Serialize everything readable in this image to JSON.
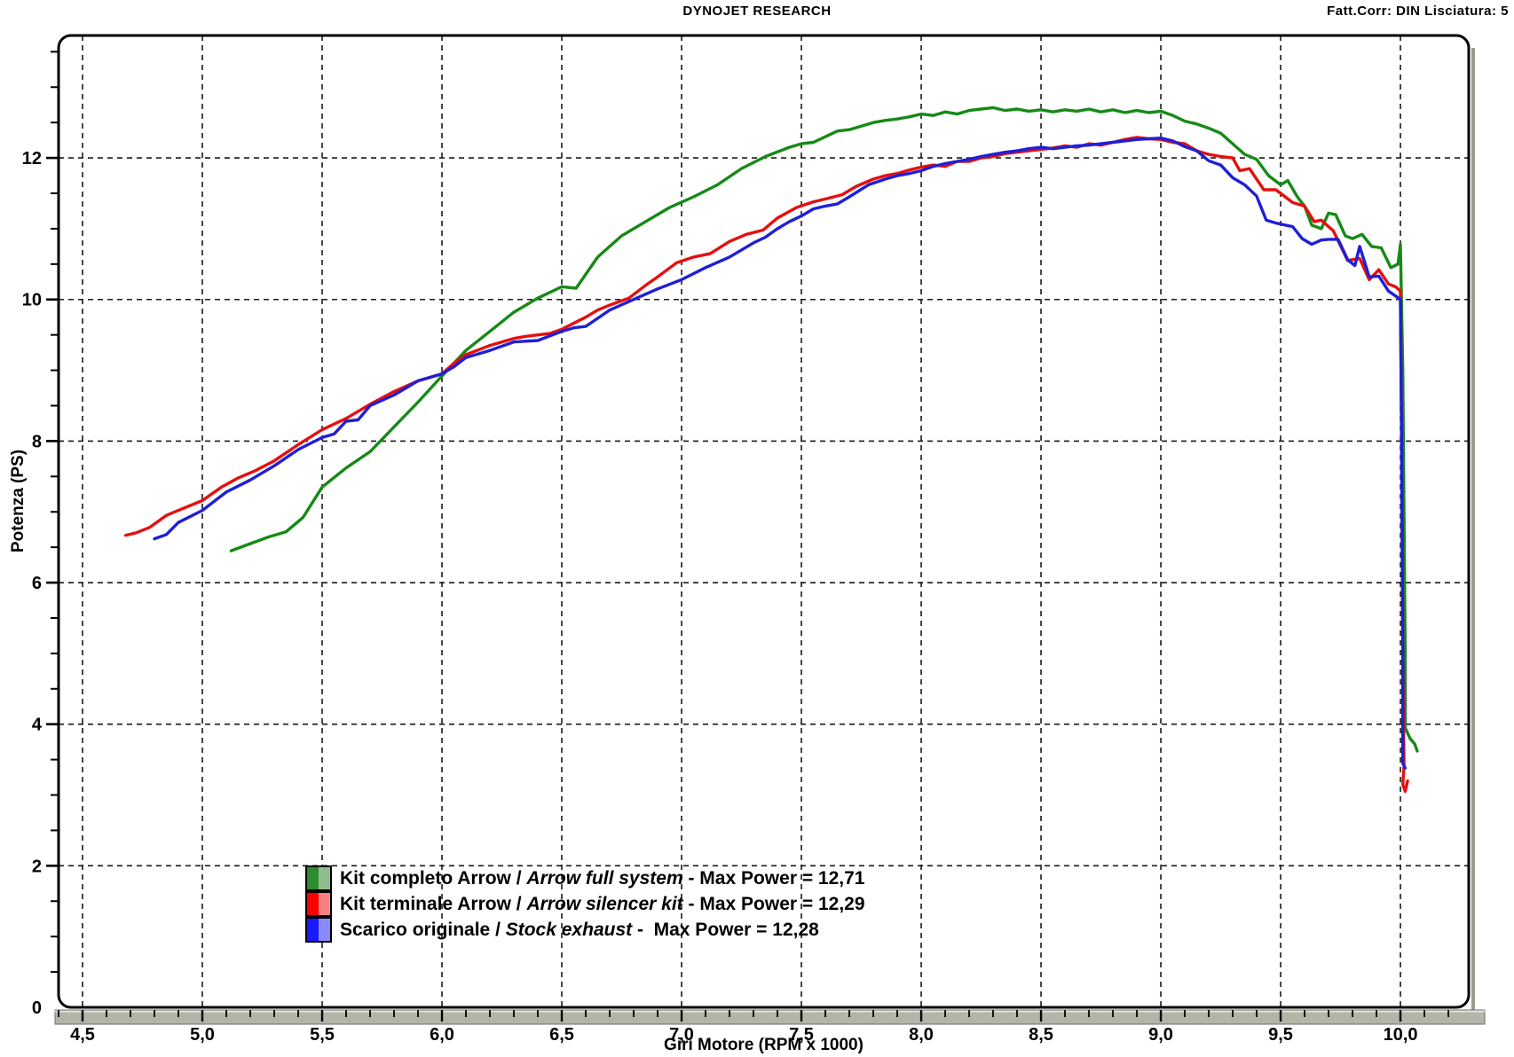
{
  "header": {
    "title": "DYNOJET RESEARCH",
    "correction": "Fatt.Corr: DIN  Lisciatura: 5"
  },
  "chart_data": {
    "type": "line",
    "title": "DYNOJET RESEARCH",
    "xlabel": "Giri Motore (RPM x 1000)",
    "ylabel": "Potenza (PS)",
    "xlim": [
      4.4,
      10.285
    ],
    "ylim": [
      0,
      13.73
    ],
    "grid": "dashed",
    "legend_position": "inside-bottom-left",
    "x_major_ticks": [
      4.5,
      5.0,
      5.5,
      6.0,
      6.5,
      7.0,
      7.5,
      8.0,
      8.5,
      9.0,
      9.5,
      10.0
    ],
    "x_tick_labels": [
      "4,5",
      "5,0",
      "5,5",
      "6,0",
      "6,5",
      "7,0",
      "7,5",
      "8,0",
      "8,5",
      "9,0",
      "9,5",
      "10,0"
    ],
    "x_minor_step": 0.1,
    "y_major_ticks": [
      0,
      2,
      4,
      6,
      8,
      10,
      12
    ],
    "y_tick_labels": [
      "0",
      "2",
      "4",
      "6",
      "8",
      "10",
      "12"
    ],
    "y_minor_step": 0.5,
    "axis_bar_color": "#b4b4a8",
    "grid_color": "#1a1a1a",
    "series": [
      {
        "name_plain": "Kit completo Arrow / ",
        "name_italic": "Arrow full system",
        "max_label": " - Max Power = 12,71",
        "max_power": "12,71",
        "color": "#168a16",
        "swatch": [
          "#2e8b2e",
          "#8fbc8f"
        ],
        "points": [
          [
            5.12,
            6.45
          ],
          [
            5.2,
            6.55
          ],
          [
            5.28,
            6.65
          ],
          [
            5.35,
            6.72
          ],
          [
            5.42,
            6.92
          ],
          [
            5.5,
            7.35
          ],
          [
            5.6,
            7.62
          ],
          [
            5.7,
            7.85
          ],
          [
            5.8,
            8.2
          ],
          [
            5.9,
            8.55
          ],
          [
            6.0,
            8.92
          ],
          [
            6.1,
            9.28
          ],
          [
            6.2,
            9.55
          ],
          [
            6.3,
            9.82
          ],
          [
            6.4,
            10.02
          ],
          [
            6.5,
            10.18
          ],
          [
            6.56,
            10.16
          ],
          [
            6.65,
            10.6
          ],
          [
            6.75,
            10.9
          ],
          [
            6.85,
            11.1
          ],
          [
            6.95,
            11.3
          ],
          [
            7.05,
            11.45
          ],
          [
            7.15,
            11.62
          ],
          [
            7.25,
            11.85
          ],
          [
            7.35,
            12.02
          ],
          [
            7.45,
            12.15
          ],
          [
            7.5,
            12.2
          ],
          [
            7.55,
            12.22
          ],
          [
            7.6,
            12.3
          ],
          [
            7.65,
            12.38
          ],
          [
            7.7,
            12.4
          ],
          [
            7.75,
            12.45
          ],
          [
            7.8,
            12.5
          ],
          [
            7.85,
            12.53
          ],
          [
            7.9,
            12.55
          ],
          [
            7.95,
            12.58
          ],
          [
            8.0,
            12.62
          ],
          [
            8.05,
            12.6
          ],
          [
            8.1,
            12.65
          ],
          [
            8.15,
            12.62
          ],
          [
            8.2,
            12.67
          ],
          [
            8.25,
            12.69
          ],
          [
            8.3,
            12.71
          ],
          [
            8.35,
            12.67
          ],
          [
            8.4,
            12.69
          ],
          [
            8.45,
            12.66
          ],
          [
            8.5,
            12.68
          ],
          [
            8.55,
            12.65
          ],
          [
            8.6,
            12.68
          ],
          [
            8.65,
            12.66
          ],
          [
            8.7,
            12.69
          ],
          [
            8.75,
            12.65
          ],
          [
            8.8,
            12.68
          ],
          [
            8.85,
            12.64
          ],
          [
            8.9,
            12.67
          ],
          [
            8.95,
            12.64
          ],
          [
            9.0,
            12.66
          ],
          [
            9.05,
            12.6
          ],
          [
            9.1,
            12.52
          ],
          [
            9.15,
            12.48
          ],
          [
            9.2,
            12.42
          ],
          [
            9.25,
            12.35
          ],
          [
            9.3,
            12.2
          ],
          [
            9.35,
            12.05
          ],
          [
            9.4,
            11.98
          ],
          [
            9.45,
            11.75
          ],
          [
            9.5,
            11.62
          ],
          [
            9.53,
            11.68
          ],
          [
            9.57,
            11.45
          ],
          [
            9.6,
            11.32
          ],
          [
            9.63,
            11.05
          ],
          [
            9.67,
            11.0
          ],
          [
            9.7,
            11.22
          ],
          [
            9.73,
            11.2
          ],
          [
            9.77,
            10.9
          ],
          [
            9.8,
            10.86
          ],
          [
            9.84,
            10.92
          ],
          [
            9.88,
            10.75
          ],
          [
            9.92,
            10.73
          ],
          [
            9.96,
            10.45
          ],
          [
            9.99,
            10.5
          ],
          [
            10.0,
            10.78
          ],
          [
            10.01,
            9.0
          ],
          [
            10.02,
            5.0
          ],
          [
            10.02,
            3.95
          ],
          [
            10.04,
            3.8
          ],
          [
            10.06,
            3.72
          ],
          [
            10.07,
            3.62
          ]
        ]
      },
      {
        "name_plain": "Kit terminale Arrow / ",
        "name_italic": "Arrow silencer kit",
        "max_label": " - Max Power = 12,29",
        "max_power": "12,29",
        "color": "#e60f0f",
        "swatch": [
          "#ff0000",
          "#fa8080"
        ],
        "points": [
          [
            4.68,
            6.67
          ],
          [
            4.72,
            6.7
          ],
          [
            4.78,
            6.78
          ],
          [
            4.85,
            6.95
          ],
          [
            4.9,
            7.02
          ],
          [
            5.0,
            7.16
          ],
          [
            5.08,
            7.35
          ],
          [
            5.15,
            7.48
          ],
          [
            5.22,
            7.58
          ],
          [
            5.3,
            7.72
          ],
          [
            5.4,
            7.95
          ],
          [
            5.5,
            8.16
          ],
          [
            5.6,
            8.32
          ],
          [
            5.7,
            8.52
          ],
          [
            5.8,
            8.7
          ],
          [
            5.9,
            8.85
          ],
          [
            6.0,
            8.95
          ],
          [
            6.05,
            9.1
          ],
          [
            6.1,
            9.22
          ],
          [
            6.2,
            9.35
          ],
          [
            6.3,
            9.45
          ],
          [
            6.35,
            9.48
          ],
          [
            6.45,
            9.52
          ],
          [
            6.5,
            9.58
          ],
          [
            6.6,
            9.75
          ],
          [
            6.65,
            9.85
          ],
          [
            6.7,
            9.92
          ],
          [
            6.78,
            10.02
          ],
          [
            6.85,
            10.2
          ],
          [
            6.9,
            10.32
          ],
          [
            6.98,
            10.52
          ],
          [
            7.05,
            10.6
          ],
          [
            7.12,
            10.65
          ],
          [
            7.2,
            10.82
          ],
          [
            7.27,
            10.92
          ],
          [
            7.34,
            10.98
          ],
          [
            7.4,
            11.15
          ],
          [
            7.48,
            11.3
          ],
          [
            7.55,
            11.38
          ],
          [
            7.6,
            11.42
          ],
          [
            7.67,
            11.48
          ],
          [
            7.73,
            11.6
          ],
          [
            7.8,
            11.7
          ],
          [
            7.85,
            11.75
          ],
          [
            7.9,
            11.78
          ],
          [
            7.95,
            11.83
          ],
          [
            8.0,
            11.87
          ],
          [
            8.05,
            11.9
          ],
          [
            8.1,
            11.88
          ],
          [
            8.15,
            11.95
          ],
          [
            8.2,
            11.95
          ],
          [
            8.25,
            12.0
          ],
          [
            8.3,
            12.02
          ],
          [
            8.35,
            12.06
          ],
          [
            8.4,
            12.08
          ],
          [
            8.45,
            12.1
          ],
          [
            8.5,
            12.12
          ],
          [
            8.55,
            12.14
          ],
          [
            8.6,
            12.17
          ],
          [
            8.65,
            12.15
          ],
          [
            8.7,
            12.2
          ],
          [
            8.75,
            12.18
          ],
          [
            8.8,
            12.22
          ],
          [
            8.85,
            12.26
          ],
          [
            8.9,
            12.29
          ],
          [
            8.95,
            12.27
          ],
          [
            9.0,
            12.26
          ],
          [
            9.05,
            12.22
          ],
          [
            9.1,
            12.2
          ],
          [
            9.15,
            12.1
          ],
          [
            9.2,
            12.05
          ],
          [
            9.25,
            12.02
          ],
          [
            9.3,
            12.0
          ],
          [
            9.33,
            11.82
          ],
          [
            9.37,
            11.85
          ],
          [
            9.43,
            11.55
          ],
          [
            9.48,
            11.55
          ],
          [
            9.5,
            11.5
          ],
          [
            9.55,
            11.37
          ],
          [
            9.6,
            11.32
          ],
          [
            9.64,
            11.1
          ],
          [
            9.67,
            11.12
          ],
          [
            9.72,
            10.97
          ],
          [
            9.75,
            10.76
          ],
          [
            9.78,
            10.55
          ],
          [
            9.83,
            10.58
          ],
          [
            9.87,
            10.28
          ],
          [
            9.91,
            10.42
          ],
          [
            9.95,
            10.22
          ],
          [
            9.98,
            10.18
          ],
          [
            10.0,
            10.12
          ],
          [
            10.005,
            8.0
          ],
          [
            10.01,
            5.0
          ],
          [
            10.015,
            3.4
          ],
          [
            10.01,
            3.15
          ],
          [
            10.02,
            3.05
          ],
          [
            10.03,
            3.2
          ]
        ]
      },
      {
        "name_plain": "Scarico originale / ",
        "name_italic": "Stock exhaust",
        "max_label": " -  Max Power = 12,28",
        "max_power": "12,28",
        "color": "#1f1fd8",
        "swatch": [
          "#1a1aff",
          "#8a8aff"
        ],
        "points": [
          [
            4.8,
            6.62
          ],
          [
            4.85,
            6.68
          ],
          [
            4.9,
            6.85
          ],
          [
            5.0,
            7.02
          ],
          [
            5.1,
            7.28
          ],
          [
            5.2,
            7.45
          ],
          [
            5.3,
            7.65
          ],
          [
            5.4,
            7.88
          ],
          [
            5.5,
            8.05
          ],
          [
            5.55,
            8.1
          ],
          [
            5.6,
            8.28
          ],
          [
            5.65,
            8.3
          ],
          [
            5.7,
            8.5
          ],
          [
            5.8,
            8.65
          ],
          [
            5.9,
            8.85
          ],
          [
            6.0,
            8.95
          ],
          [
            6.05,
            9.05
          ],
          [
            6.1,
            9.18
          ],
          [
            6.2,
            9.28
          ],
          [
            6.3,
            9.4
          ],
          [
            6.4,
            9.42
          ],
          [
            6.5,
            9.55
          ],
          [
            6.55,
            9.6
          ],
          [
            6.6,
            9.62
          ],
          [
            6.7,
            9.85
          ],
          [
            6.8,
            10.0
          ],
          [
            6.9,
            10.15
          ],
          [
            7.0,
            10.28
          ],
          [
            7.1,
            10.45
          ],
          [
            7.2,
            10.6
          ],
          [
            7.3,
            10.8
          ],
          [
            7.35,
            10.88
          ],
          [
            7.4,
            11.0
          ],
          [
            7.45,
            11.1
          ],
          [
            7.5,
            11.18
          ],
          [
            7.55,
            11.28
          ],
          [
            7.6,
            11.32
          ],
          [
            7.65,
            11.35
          ],
          [
            7.7,
            11.45
          ],
          [
            7.78,
            11.62
          ],
          [
            7.85,
            11.7
          ],
          [
            7.9,
            11.75
          ],
          [
            7.95,
            11.78
          ],
          [
            8.0,
            11.82
          ],
          [
            8.05,
            11.88
          ],
          [
            8.1,
            11.92
          ],
          [
            8.15,
            11.95
          ],
          [
            8.2,
            11.98
          ],
          [
            8.25,
            12.02
          ],
          [
            8.3,
            12.05
          ],
          [
            8.35,
            12.08
          ],
          [
            8.4,
            12.1
          ],
          [
            8.45,
            12.13
          ],
          [
            8.5,
            12.15
          ],
          [
            8.55,
            12.13
          ],
          [
            8.6,
            12.15
          ],
          [
            8.65,
            12.17
          ],
          [
            8.7,
            12.18
          ],
          [
            8.75,
            12.2
          ],
          [
            8.8,
            12.22
          ],
          [
            8.85,
            12.24
          ],
          [
            8.9,
            12.26
          ],
          [
            8.95,
            12.27
          ],
          [
            9.0,
            12.28
          ],
          [
            9.05,
            12.24
          ],
          [
            9.1,
            12.16
          ],
          [
            9.15,
            12.1
          ],
          [
            9.2,
            11.96
          ],
          [
            9.25,
            11.9
          ],
          [
            9.3,
            11.72
          ],
          [
            9.35,
            11.62
          ],
          [
            9.4,
            11.46
          ],
          [
            9.44,
            11.12
          ],
          [
            9.48,
            11.08
          ],
          [
            9.52,
            11.05
          ],
          [
            9.55,
            11.03
          ],
          [
            9.59,
            10.86
          ],
          [
            9.63,
            10.78
          ],
          [
            9.67,
            10.84
          ],
          [
            9.7,
            10.85
          ],
          [
            9.74,
            10.85
          ],
          [
            9.78,
            10.56
          ],
          [
            9.81,
            10.48
          ],
          [
            9.83,
            10.75
          ],
          [
            9.87,
            10.32
          ],
          [
            9.91,
            10.33
          ],
          [
            9.95,
            10.12
          ],
          [
            9.98,
            10.05
          ],
          [
            10.0,
            10.0
          ],
          [
            10.005,
            8.0
          ],
          [
            10.01,
            5.0
          ],
          [
            10.01,
            3.45
          ],
          [
            10.02,
            3.38
          ]
        ]
      }
    ]
  }
}
